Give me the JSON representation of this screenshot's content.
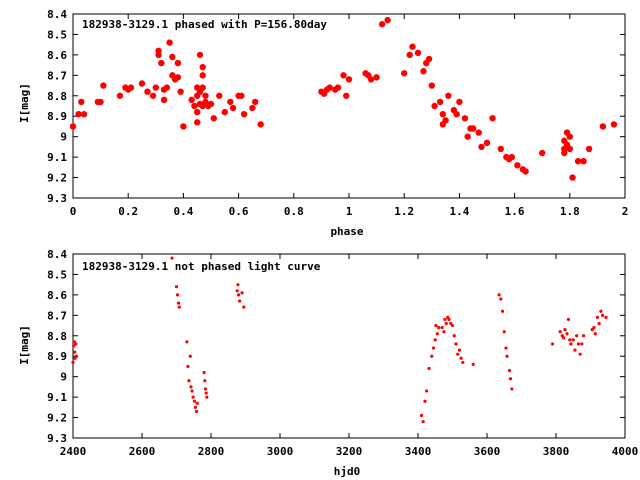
{
  "colors": {
    "points": "#ff0000",
    "axes": "#000000",
    "background": "#ffffff"
  },
  "chart_data": [
    {
      "type": "scatter",
      "title": "182938-3129.1 phased with P=156.80day",
      "xlabel": "phase",
      "ylabel": "I[mag]",
      "xlim": [
        0,
        2
      ],
      "ylim": [
        9.3,
        8.4
      ],
      "y_inverted": true,
      "grid": false,
      "x_ticks": [
        "0",
        "0.2",
        "0.4",
        "0.6",
        "0.8",
        "1",
        "1.2",
        "1.4",
        "1.6",
        "1.8",
        "2"
      ],
      "y_ticks": [
        "8.4",
        "8.5",
        "8.6",
        "8.7",
        "8.8",
        "8.9",
        "9",
        "9.1",
        "9.2",
        "9.3"
      ],
      "marker": "filled-circle",
      "series": [
        {
          "points": [
            [
              0.0,
              8.95
            ],
            [
              0.02,
              8.89
            ],
            [
              0.03,
              8.83
            ],
            [
              0.04,
              8.89
            ],
            [
              0.09,
              8.83
            ],
            [
              0.1,
              8.83
            ],
            [
              0.11,
              8.75
            ],
            [
              0.17,
              8.8
            ],
            [
              0.19,
              8.76
            ],
            [
              0.2,
              8.77
            ],
            [
              0.21,
              8.76
            ],
            [
              0.25,
              8.74
            ],
            [
              0.27,
              8.78
            ],
            [
              0.29,
              8.8
            ],
            [
              0.3,
              8.76
            ],
            [
              0.31,
              8.6
            ],
            [
              0.31,
              8.58
            ],
            [
              0.32,
              8.64
            ],
            [
              0.33,
              8.77
            ],
            [
              0.33,
              8.82
            ],
            [
              0.34,
              8.76
            ],
            [
              0.35,
              8.54
            ],
            [
              0.36,
              8.61
            ],
            [
              0.36,
              8.7
            ],
            [
              0.37,
              8.72
            ],
            [
              0.38,
              8.71
            ],
            [
              0.38,
              8.64
            ],
            [
              0.39,
              8.78
            ],
            [
              0.4,
              8.95
            ],
            [
              0.43,
              8.82
            ],
            [
              0.44,
              8.85
            ],
            [
              0.45,
              8.76
            ],
            [
              0.45,
              8.8
            ],
            [
              0.45,
              8.88
            ],
            [
              0.45,
              8.93
            ],
            [
              0.46,
              8.78
            ],
            [
              0.46,
              8.84
            ],
            [
              0.46,
              8.6
            ],
            [
              0.47,
              8.85
            ],
            [
              0.47,
              8.66
            ],
            [
              0.47,
              8.7
            ],
            [
              0.47,
              8.76
            ],
            [
              0.48,
              8.8
            ],
            [
              0.48,
              8.83
            ],
            [
              0.49,
              8.85
            ],
            [
              0.5,
              8.84
            ],
            [
              0.51,
              8.91
            ],
            [
              0.53,
              8.8
            ],
            [
              0.55,
              8.88
            ],
            [
              0.57,
              8.83
            ],
            [
              0.58,
              8.86
            ],
            [
              0.6,
              8.8
            ],
            [
              0.61,
              8.8
            ],
            [
              0.62,
              8.89
            ],
            [
              0.65,
              8.86
            ],
            [
              0.66,
              8.83
            ],
            [
              0.68,
              8.94
            ],
            [
              0.9,
              8.78
            ],
            [
              0.91,
              8.79
            ],
            [
              0.92,
              8.77
            ],
            [
              0.93,
              8.76
            ],
            [
              0.95,
              8.77
            ],
            [
              0.96,
              8.76
            ],
            [
              0.98,
              8.7
            ],
            [
              0.99,
              8.8
            ],
            [
              1.0,
              8.72
            ],
            [
              1.06,
              8.69
            ],
            [
              1.07,
              8.7
            ],
            [
              1.08,
              8.72
            ],
            [
              1.1,
              8.71
            ],
            [
              1.12,
              8.45
            ],
            [
              1.14,
              8.43
            ],
            [
              1.2,
              8.69
            ],
            [
              1.22,
              8.6
            ],
            [
              1.23,
              8.56
            ],
            [
              1.25,
              8.59
            ],
            [
              1.27,
              8.68
            ],
            [
              1.28,
              8.64
            ],
            [
              1.29,
              8.62
            ],
            [
              1.3,
              8.75
            ],
            [
              1.31,
              8.85
            ],
            [
              1.33,
              8.83
            ],
            [
              1.34,
              8.89
            ],
            [
              1.34,
              8.94
            ],
            [
              1.35,
              8.92
            ],
            [
              1.36,
              8.8
            ],
            [
              1.38,
              8.87
            ],
            [
              1.39,
              8.89
            ],
            [
              1.4,
              8.83
            ],
            [
              1.42,
              8.91
            ],
            [
              1.43,
              9.0
            ],
            [
              1.44,
              8.96
            ],
            [
              1.45,
              8.96
            ],
            [
              1.47,
              8.98
            ],
            [
              1.48,
              9.05
            ],
            [
              1.5,
              9.03
            ],
            [
              1.52,
              8.91
            ],
            [
              1.55,
              9.06
            ],
            [
              1.57,
              9.1
            ],
            [
              1.58,
              9.11
            ],
            [
              1.59,
              9.1
            ],
            [
              1.61,
              9.14
            ],
            [
              1.63,
              9.16
            ],
            [
              1.64,
              9.17
            ],
            [
              1.7,
              9.08
            ],
            [
              1.78,
              9.02
            ],
            [
              1.78,
              9.06
            ],
            [
              1.78,
              9.08
            ],
            [
              1.79,
              8.98
            ],
            [
              1.79,
              9.04
            ],
            [
              1.8,
              9.0
            ],
            [
              1.8,
              9.06
            ],
            [
              1.81,
              9.2
            ],
            [
              1.83,
              9.12
            ],
            [
              1.85,
              9.12
            ],
            [
              1.87,
              9.06
            ],
            [
              1.92,
              8.95
            ],
            [
              1.96,
              8.94
            ]
          ]
        }
      ]
    },
    {
      "type": "scatter",
      "title": "182938-3129.1 not phased light curve",
      "xlabel": "hjd0",
      "ylabel": "I[mag]",
      "xlim": [
        2400,
        4000
      ],
      "ylim": [
        9.3,
        8.4
      ],
      "y_inverted": true,
      "grid": false,
      "x_ticks": [
        "2400",
        "2600",
        "2800",
        "3000",
        "3200",
        "3400",
        "3600",
        "3800",
        "4000"
      ],
      "y_ticks": [
        "8.4",
        "8.5",
        "8.6",
        "8.7",
        "8.8",
        "8.9",
        "9",
        "9.1",
        "9.2",
        "9.3"
      ],
      "marker": "small-dot",
      "series": [
        {
          "points": [
            [
              2400,
              8.93
            ],
            [
              2402,
              8.85
            ],
            [
              2404,
              8.83
            ],
            [
              2405,
              8.88
            ],
            [
              2406,
              8.91
            ],
            [
              2408,
              8.84
            ],
            [
              2410,
              8.9
            ],
            [
              2687,
              8.42
            ],
            [
              2700,
              8.56
            ],
            [
              2703,
              8.6
            ],
            [
              2706,
              8.64
            ],
            [
              2708,
              8.66
            ],
            [
              2730,
              8.83
            ],
            [
              2733,
              8.95
            ],
            [
              2736,
              9.02
            ],
            [
              2740,
              8.9
            ],
            [
              2742,
              9.05
            ],
            [
              2745,
              9.07
            ],
            [
              2748,
              9.1
            ],
            [
              2752,
              9.12
            ],
            [
              2755,
              9.15
            ],
            [
              2758,
              9.17
            ],
            [
              2760,
              9.13
            ],
            [
              2780,
              8.98
            ],
            [
              2782,
              9.02
            ],
            [
              2784,
              9.06
            ],
            [
              2786,
              9.08
            ],
            [
              2788,
              9.1
            ],
            [
              2876,
              8.58
            ],
            [
              2878,
              8.55
            ],
            [
              2880,
              8.6
            ],
            [
              2883,
              8.63
            ],
            [
              2890,
              8.59
            ],
            [
              2895,
              8.66
            ],
            [
              3410,
              9.19
            ],
            [
              3415,
              9.22
            ],
            [
              3420,
              9.12
            ],
            [
              3425,
              9.07
            ],
            [
              3432,
              8.96
            ],
            [
              3440,
              8.9
            ],
            [
              3445,
              8.86
            ],
            [
              3450,
              8.82
            ],
            [
              3452,
              8.75
            ],
            [
              3456,
              8.79
            ],
            [
              3460,
              8.76
            ],
            [
              3470,
              8.76
            ],
            [
              3475,
              8.78
            ],
            [
              3478,
              8.72
            ],
            [
              3482,
              8.74
            ],
            [
              3486,
              8.71
            ],
            [
              3490,
              8.72
            ],
            [
              3495,
              8.74
            ],
            [
              3500,
              8.75
            ],
            [
              3505,
              8.8
            ],
            [
              3510,
              8.84
            ],
            [
              3515,
              8.89
            ],
            [
              3520,
              8.87
            ],
            [
              3525,
              8.91
            ],
            [
              3530,
              8.93
            ],
            [
              3560,
              8.94
            ],
            [
              3635,
              8.6
            ],
            [
              3640,
              8.62
            ],
            [
              3645,
              8.68
            ],
            [
              3650,
              8.78
            ],
            [
              3655,
              8.86
            ],
            [
              3658,
              8.9
            ],
            [
              3665,
              8.97
            ],
            [
              3668,
              9.01
            ],
            [
              3672,
              9.06
            ],
            [
              3790,
              8.84
            ],
            [
              3812,
              8.78
            ],
            [
              3818,
              8.8
            ],
            [
              3822,
              8.81
            ],
            [
              3826,
              8.77
            ],
            [
              3832,
              8.79
            ],
            [
              3836,
              8.72
            ],
            [
              3840,
              8.82
            ],
            [
              3843,
              8.84
            ],
            [
              3850,
              8.82
            ],
            [
              3855,
              8.87
            ],
            [
              3860,
              8.8
            ],
            [
              3865,
              8.84
            ],
            [
              3870,
              8.89
            ],
            [
              3875,
              8.84
            ],
            [
              3880,
              8.8
            ],
            [
              3905,
              8.77
            ],
            [
              3910,
              8.76
            ],
            [
              3914,
              8.79
            ],
            [
              3920,
              8.71
            ],
            [
              3925,
              8.74
            ],
            [
              3930,
              8.68
            ],
            [
              3935,
              8.7
            ],
            [
              3945,
              8.71
            ]
          ]
        }
      ]
    }
  ]
}
